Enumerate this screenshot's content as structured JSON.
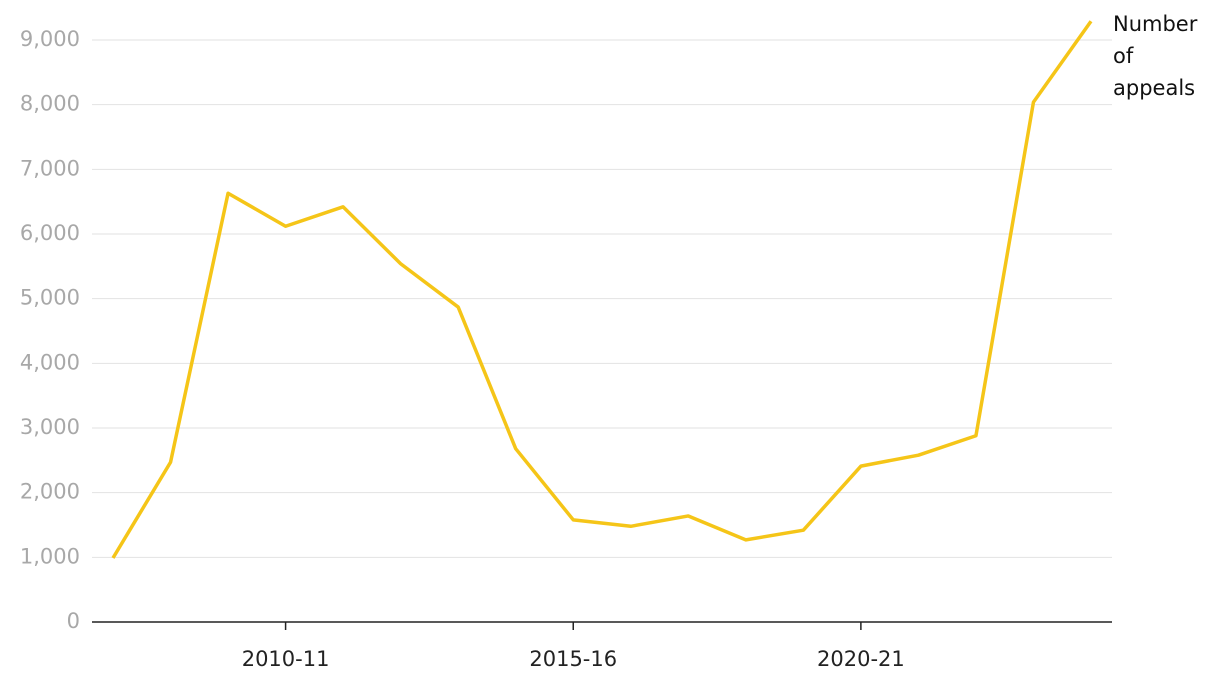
{
  "chart_data": {
    "type": "line",
    "categories": [
      null,
      null,
      null,
      "2010-11",
      null,
      null,
      null,
      null,
      "2015-16",
      null,
      null,
      null,
      null,
      "2020-21",
      null,
      null,
      null,
      null
    ],
    "series": [
      {
        "name": "Number of appeals",
        "color": "#f5c518",
        "values": [
          990,
          2470,
          6630,
          6120,
          6420,
          5540,
          4870,
          2680,
          1580,
          1480,
          1640,
          1270,
          1420,
          2410,
          2580,
          2880,
          8040,
          9290
        ]
      }
    ],
    "ylim": [
      0,
      9000
    ],
    "yticks": [
      0,
      {
        "value": 1000,
        "label": "1,000"
      },
      {
        "value": 2000,
        "label": "2,000"
      },
      {
        "value": 3000,
        "label": "3,000"
      },
      {
        "value": 4000,
        "label": "4,000"
      },
      {
        "value": 5000,
        "label": "5,000"
      },
      {
        "value": 6000,
        "label": "6,000"
      },
      {
        "value": 7000,
        "label": "7,000"
      },
      {
        "value": 8000,
        "label": "8,000"
      },
      {
        "value": 9000,
        "label": "9,000"
      }
    ],
    "grid": true
  }
}
